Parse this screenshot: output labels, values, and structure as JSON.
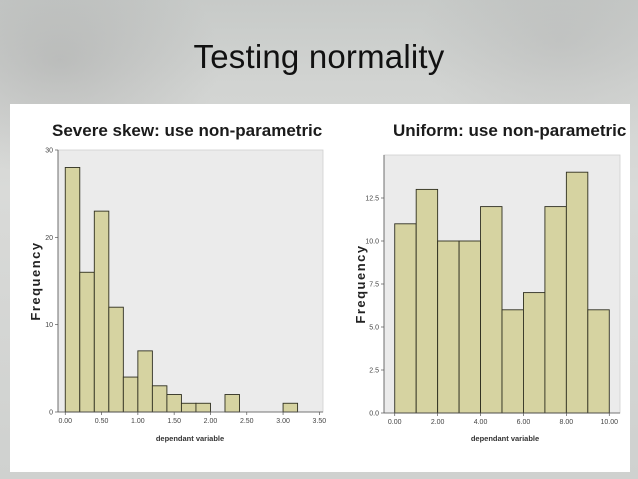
{
  "slide": {
    "title": "Testing normality"
  },
  "chart_data": [
    {
      "type": "bar",
      "title": "Severe skew: use non-parametric",
      "xlabel": "dependant variable",
      "ylabel": "Frequency",
      "bin_start": 0.0,
      "bin_width": 0.2,
      "values": [
        28,
        16,
        23,
        12,
        4,
        7,
        3,
        2,
        1,
        1,
        0,
        2,
        0,
        0,
        0,
        1,
        0
      ],
      "xlim": [
        -0.1,
        3.55
      ],
      "ylim": [
        0,
        30
      ],
      "xticks": [
        0.0,
        0.5,
        1.0,
        1.5,
        2.0,
        2.5,
        3.0,
        3.5
      ],
      "xtick_labels": [
        "0.00",
        "0.50",
        "1.00",
        "1.50",
        "2.00",
        "2.50",
        "3.00",
        "3.50"
      ],
      "yticks": [
        0,
        10,
        20,
        30
      ],
      "ytick_labels": [
        "0",
        "10",
        "20",
        "30"
      ],
      "bar_color": "#d6d3a1",
      "edge_color": "#2f2f20"
    },
    {
      "type": "bar",
      "title": "Uniform: use non-parametric",
      "xlabel": "dependant variable",
      "ylabel": "Frequency",
      "bin_start": 0.0,
      "bin_width": 1.0,
      "values": [
        11,
        13,
        10,
        10,
        12,
        6,
        7,
        12,
        14,
        6
      ],
      "xlim": [
        -0.5,
        10.5
      ],
      "ylim": [
        0,
        15
      ],
      "xticks": [
        0,
        2,
        4,
        6,
        8,
        10
      ],
      "xtick_labels": [
        "0.00",
        "2.00",
        "4.00",
        "6.00",
        "8.00",
        "10.00"
      ],
      "yticks": [
        0,
        2.5,
        5,
        7.5,
        10,
        12.5
      ],
      "ytick_labels": [
        "0.0",
        "2.5",
        "5.0",
        "7.5",
        "10.0",
        "12.5"
      ],
      "bar_color": "#d6d3a1",
      "edge_color": "#2f2f20"
    }
  ]
}
